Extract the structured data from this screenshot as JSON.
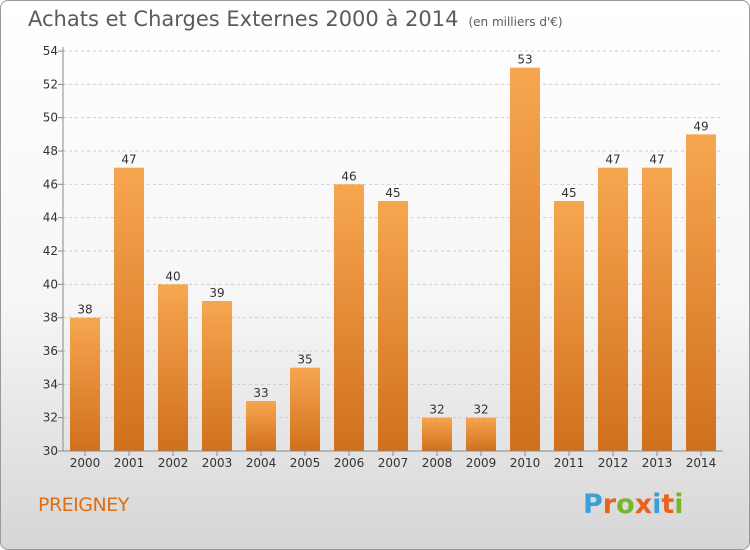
{
  "header": {
    "title": "Achats et Charges Externes 2000 à 2014",
    "unit": "(en milliers d'€)"
  },
  "commune": "PREIGNEY",
  "logo": {
    "letters": [
      "P",
      "r",
      "o",
      "x",
      "i",
      "t",
      "i"
    ],
    "colors": [
      "#3aa0d8",
      "#e8641e",
      "#79b42c",
      "#e8641e",
      "#3aa0d8",
      "#e8641e",
      "#79b42c"
    ]
  },
  "colors": {
    "bar_light": "#f7a650",
    "bar_dark": "#d0701c",
    "grid": "#cccccc",
    "axis_text": "#333333",
    "title_text": "#5b5b5b",
    "commune_text": "#e06d10"
  },
  "chart_data": {
    "type": "bar",
    "categories": [
      "2000",
      "2001",
      "2002",
      "2003",
      "2004",
      "2005",
      "2006",
      "2007",
      "2008",
      "2009",
      "2010",
      "2011",
      "2012",
      "2013",
      "2014"
    ],
    "values": [
      38,
      47,
      40,
      39,
      33,
      35,
      46,
      45,
      32,
      32,
      53,
      45,
      47,
      47,
      49
    ],
    "value_labels": [
      "38",
      "47",
      "40",
      "39",
      "33",
      "35",
      "46",
      "45",
      "32",
      "32",
      "53",
      "45",
      "47",
      "47",
      "49"
    ],
    "yticks": [
      "30",
      "32",
      "34",
      "36",
      "38",
      "40",
      "42",
      "44",
      "46",
      "48",
      "50",
      "52",
      "54"
    ],
    "ylim": [
      30,
      54
    ],
    "grid": true,
    "title": "Achats et Charges Externes 2000 à 2014",
    "xlabel": "",
    "ylabel": ""
  }
}
